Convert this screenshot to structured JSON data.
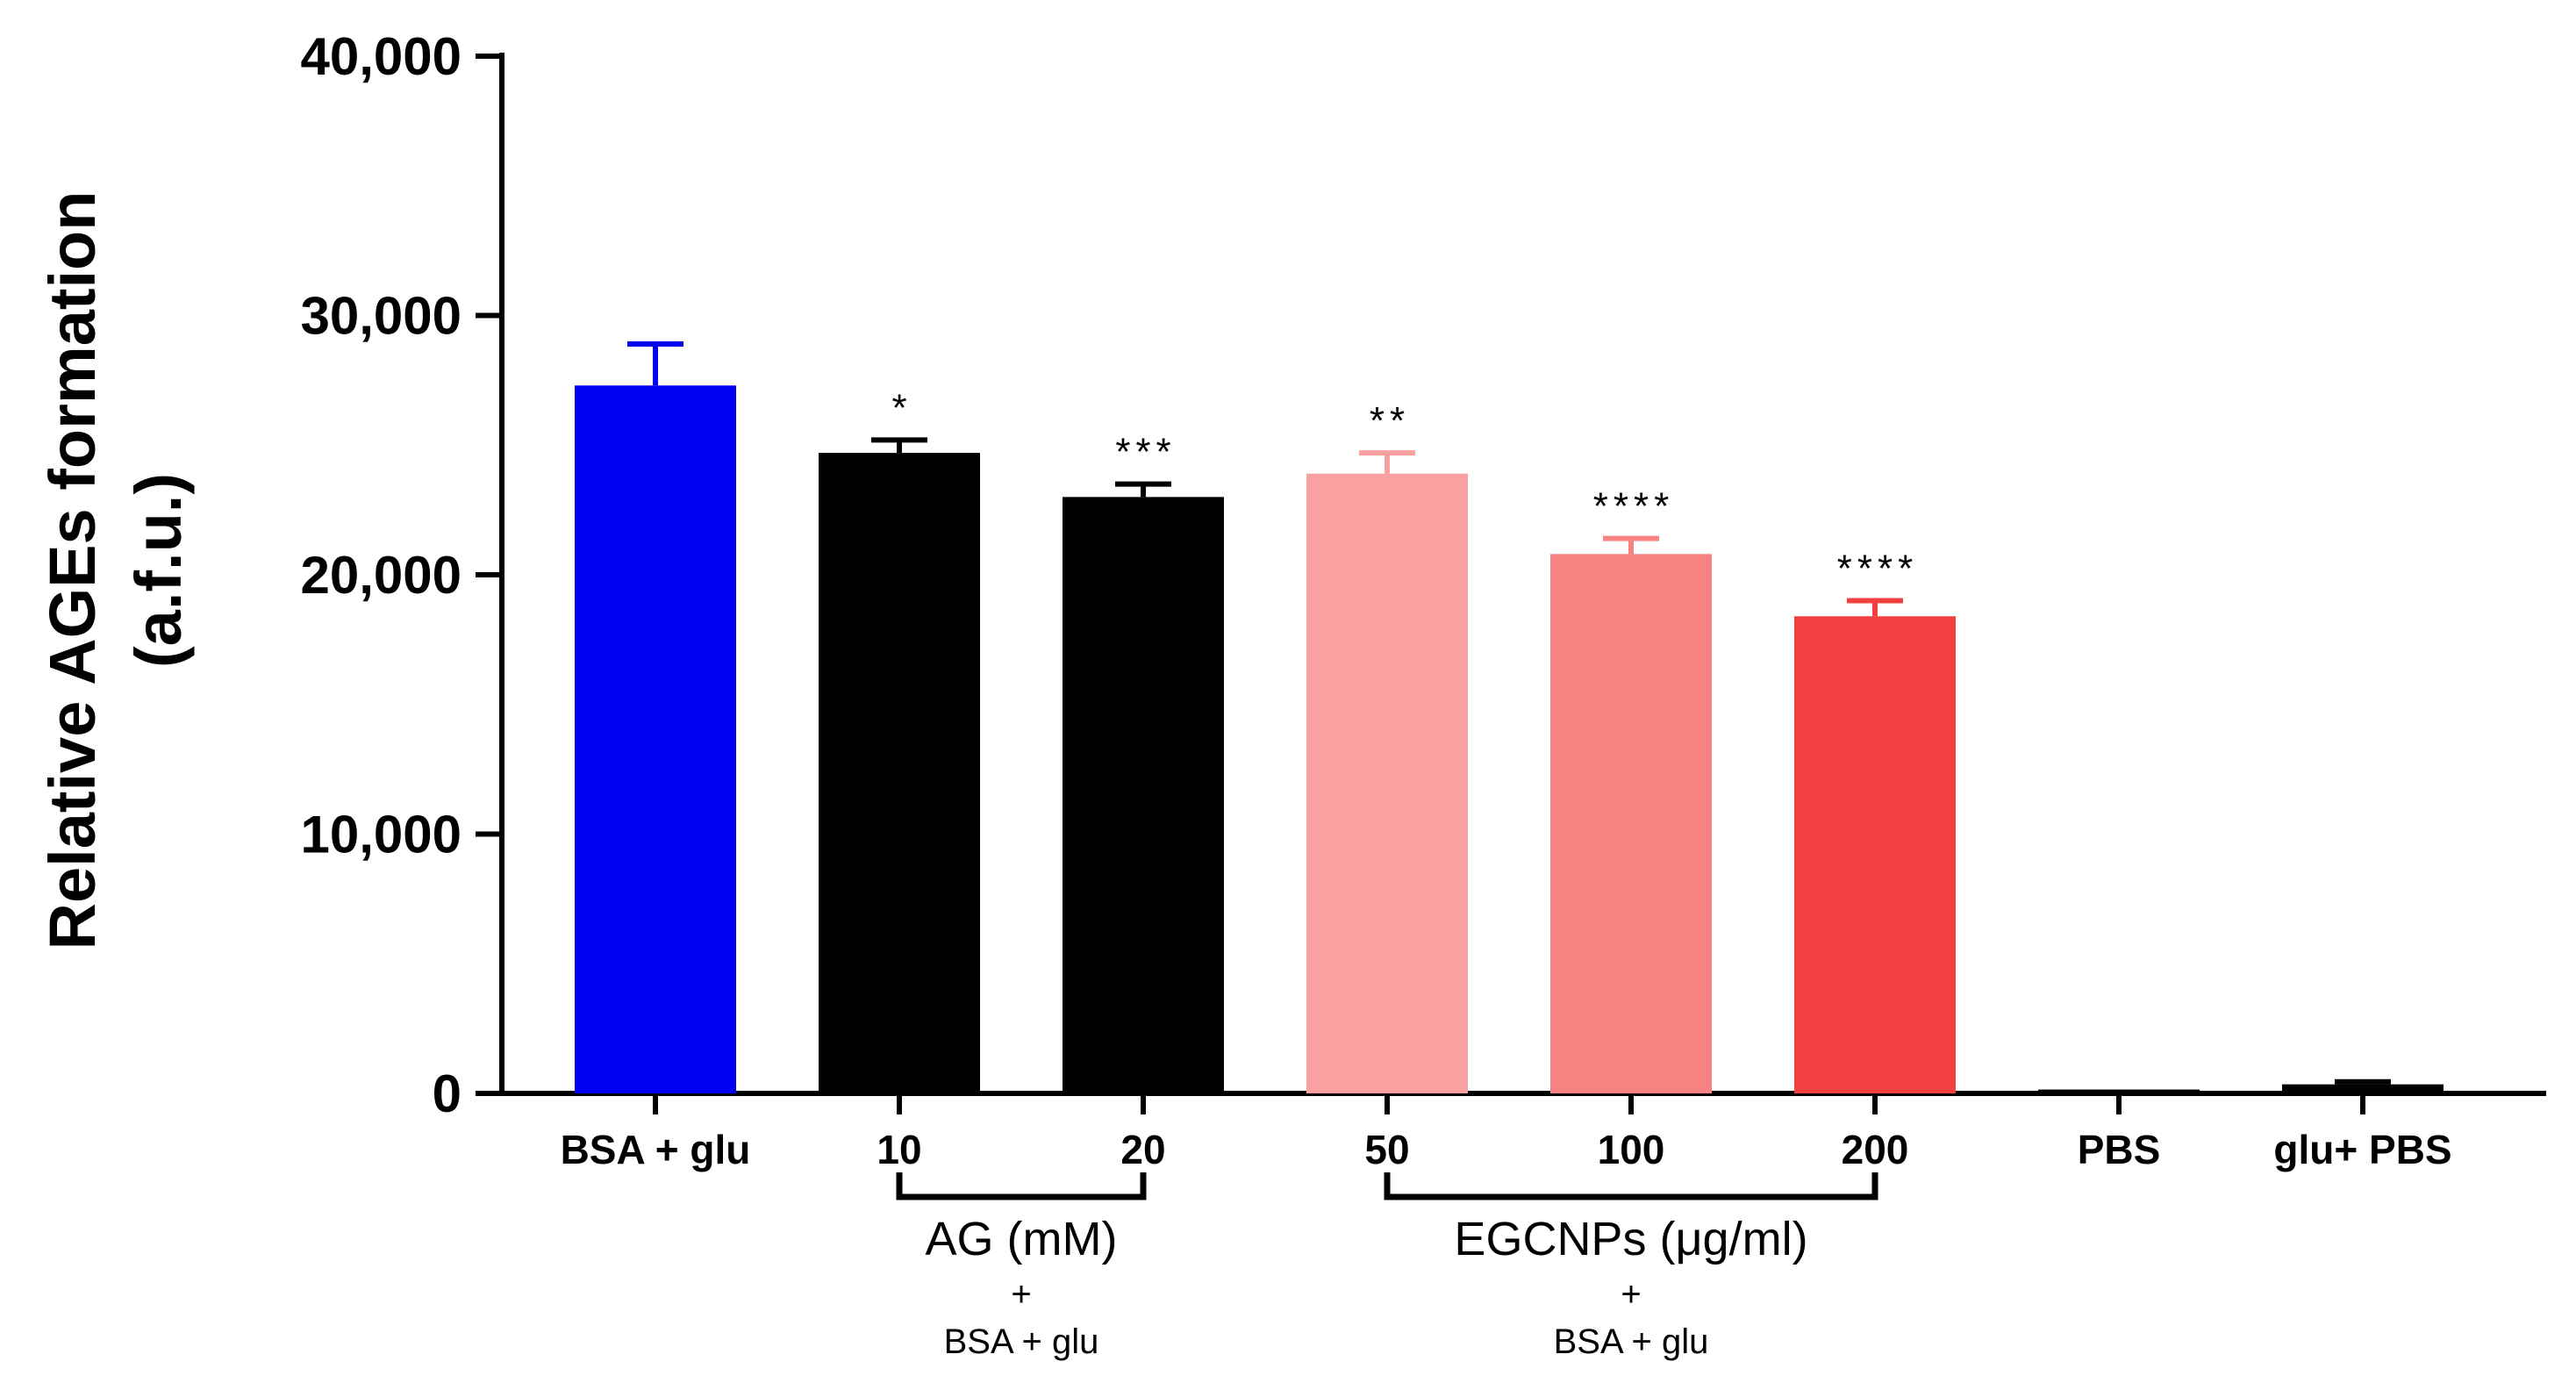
{
  "chart_data": {
    "type": "bar",
    "ylabel_line1": "Relative AGEs formation",
    "ylabel_line2": "(a.f.u.)",
    "ylim": [
      0,
      40000
    ],
    "yticks": [
      {
        "value": 0,
        "label": "0"
      },
      {
        "value": 10000,
        "label": "10,000"
      },
      {
        "value": 20000,
        "label": "20,000"
      },
      {
        "value": 30000,
        "label": "30,000"
      },
      {
        "value": 40000,
        "label": "40,000"
      }
    ],
    "categories": [
      "BSA + glu",
      "10",
      "20",
      "50",
      "100",
      "200",
      "PBS",
      "glu+ PBS"
    ],
    "values": [
      27300,
      24700,
      23000,
      23900,
      20800,
      18400,
      150,
      350
    ],
    "errors": [
      1600,
      500,
      500,
      800,
      600,
      600,
      0,
      100
    ],
    "colors": [
      "#0000f5",
      "#000000",
      "#000000",
      "#f9a0a0",
      "#f78282",
      "#f23f3f",
      "#000000",
      "#000000"
    ],
    "significance": [
      "",
      "*",
      "***",
      "**",
      "****",
      "****",
      "",
      ""
    ],
    "groups": [
      {
        "label": "AG (mM)",
        "plus": "+",
        "sub": "BSA + glu",
        "from": 1,
        "to": 2
      },
      {
        "label": "EGCNPs (μg/ml)",
        "plus": "+",
        "sub": "BSA + glu",
        "from": 3,
        "to": 5
      }
    ],
    "grid": false
  }
}
